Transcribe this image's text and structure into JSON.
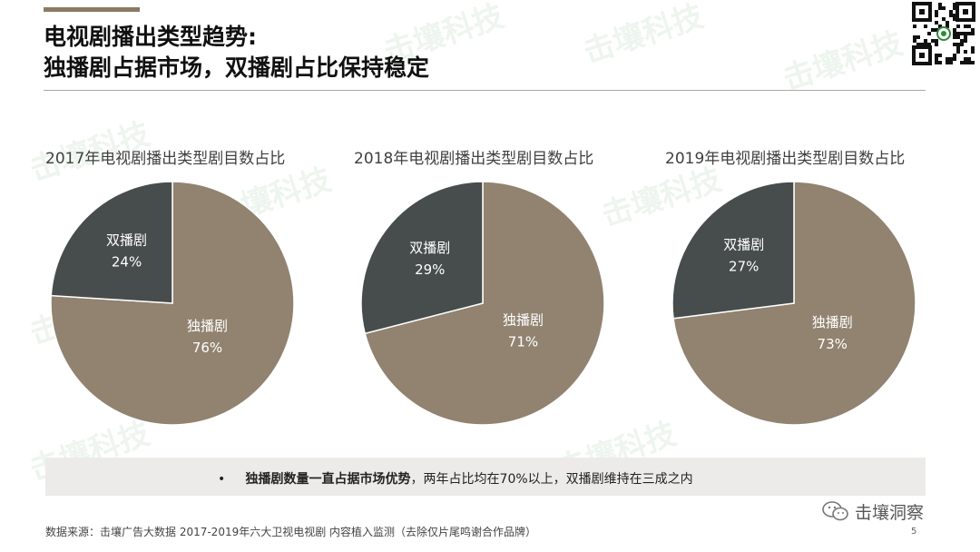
{
  "title": {
    "line1": "电视剧播出类型趋势:",
    "line2": "独播剧占据市场，双播剧占比保持稳定"
  },
  "colors": {
    "exclusive": "#918370",
    "dual": "#474d4c",
    "accent": "#8b7a63"
  },
  "watermark": "击壤科技",
  "chart_data": [
    {
      "type": "pie",
      "title": "2017年电视剧播出类型剧目数占比",
      "slices": [
        {
          "label": "双播剧",
          "value": 24,
          "value_label": "24%"
        },
        {
          "label": "独播剧",
          "value": 76,
          "value_label": "76%"
        }
      ]
    },
    {
      "type": "pie",
      "title": "2018年电视剧播出类型剧目数占比",
      "slices": [
        {
          "label": "双播剧",
          "value": 29,
          "value_label": "29%"
        },
        {
          "label": "独播剧",
          "value": 71,
          "value_label": "71%"
        }
      ]
    },
    {
      "type": "pie",
      "title": "2019年电视剧播出类型剧目数占比",
      "slices": [
        {
          "label": "双播剧",
          "value": 27,
          "value_label": "27%"
        },
        {
          "label": "独播剧",
          "value": 73,
          "value_label": "73%"
        }
      ]
    }
  ],
  "summary": {
    "bullet": "•",
    "bold": "独播剧数量一直占据市场优势",
    "rest": "，两年占比均在70%以上，双播剧维持在三成之内"
  },
  "source": "数据来源：击壤广告大数据  2017-2019年六大卫视电视剧 内容植入监测（去除仅片尾鸣谢合作品牌）",
  "page_number": "5",
  "brand": "击壤洞察"
}
